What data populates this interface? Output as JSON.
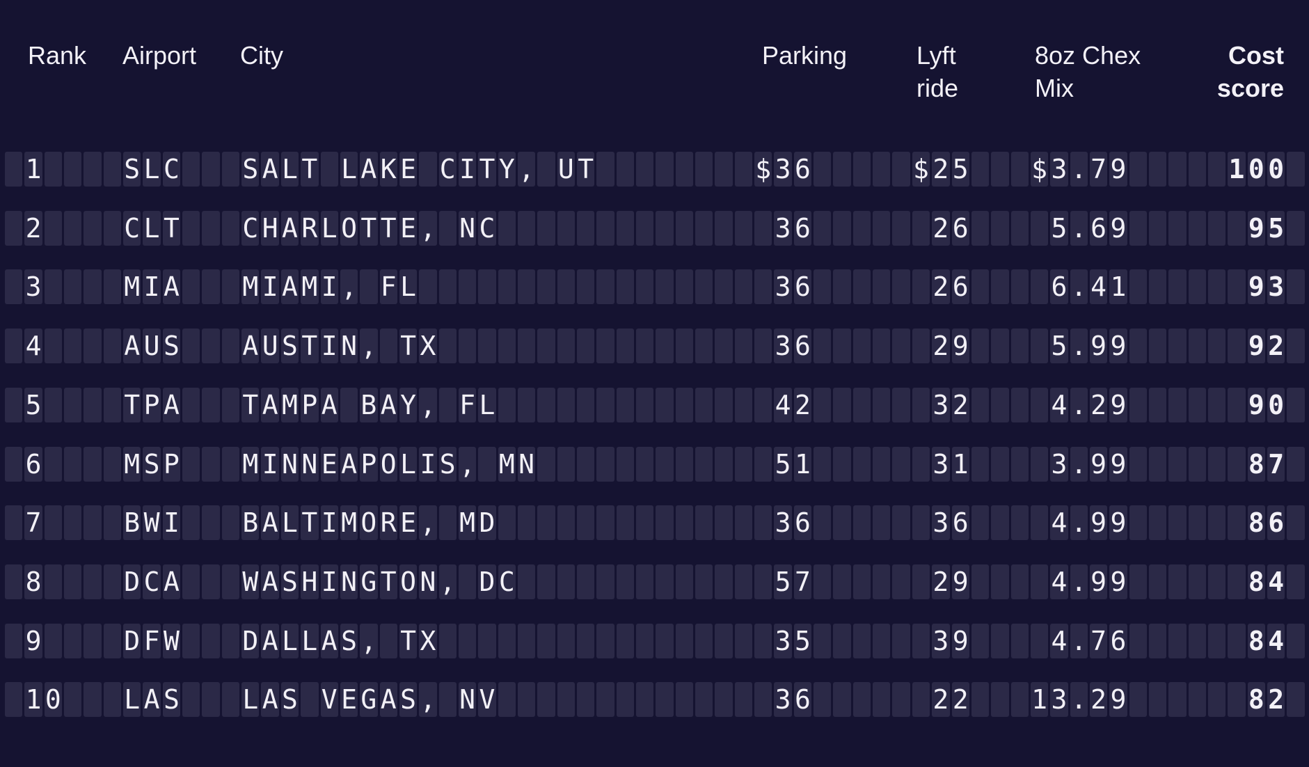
{
  "board": {
    "headers": {
      "rank": "Rank",
      "airport": "Airport",
      "city": "City",
      "parking": "Parking",
      "lyft": "Lyft ride",
      "chex": "8oz Chex Mix",
      "score": "Cost score"
    },
    "rows": [
      {
        "rank": "1",
        "airport": "SLC",
        "city": "SALT LAKE CITY, UT",
        "parking": "$36",
        "lyft": "$25",
        "chex": "$3.79",
        "score": "100"
      },
      {
        "rank": "2",
        "airport": "CLT",
        "city": "CHARLOTTE, NC",
        "parking": "36",
        "lyft": "26",
        "chex": "5.69",
        "score": "95"
      },
      {
        "rank": "3",
        "airport": "MIA",
        "city": "MIAMI, FL",
        "parking": "36",
        "lyft": "26",
        "chex": "6.41",
        "score": "93"
      },
      {
        "rank": "4",
        "airport": "AUS",
        "city": "AUSTIN, TX",
        "parking": "36",
        "lyft": "29",
        "chex": "5.99",
        "score": "92"
      },
      {
        "rank": "5",
        "airport": "TPA",
        "city": "TAMPA BAY, FL",
        "parking": "42",
        "lyft": "32",
        "chex": "4.29",
        "score": "90"
      },
      {
        "rank": "6",
        "airport": "MSP",
        "city": "MINNEAPOLIS, MN",
        "parking": "51",
        "lyft": "31",
        "chex": "3.99",
        "score": "87"
      },
      {
        "rank": "7",
        "airport": "BWI",
        "city": "BALTIMORE, MD",
        "parking": "36",
        "lyft": "36",
        "chex": "4.99",
        "score": "86"
      },
      {
        "rank": "8",
        "airport": "DCA",
        "city": "WASHINGTON, DC",
        "parking": "57",
        "lyft": "29",
        "chex": "4.99",
        "score": "84"
      },
      {
        "rank": "9",
        "airport": "DFW",
        "city": "DALLAS, TX",
        "parking": "35",
        "lyft": "39",
        "chex": "4.76",
        "score": "84"
      },
      {
        "rank": "10",
        "airport": "LAS",
        "city": "LAS VEGAS, NV",
        "parking": "36",
        "lyft": "22",
        "chex": "13.29",
        "score": "82"
      }
    ],
    "colors": {
      "background": "#151331",
      "cell": "#2b2947",
      "text": "#f3f1f7"
    }
  },
  "chart_data": {
    "type": "table",
    "title": "",
    "columns": [
      "Rank",
      "Airport",
      "City",
      "Parking",
      "Lyft ride",
      "8oz Chex Mix",
      "Cost score"
    ],
    "rows": [
      [
        1,
        "SLC",
        "SALT LAKE CITY, UT",
        "$36",
        "$25",
        "$3.79",
        100
      ],
      [
        2,
        "CLT",
        "CHARLOTTE, NC",
        "36",
        "26",
        "5.69",
        95
      ],
      [
        3,
        "MIA",
        "MIAMI, FL",
        "36",
        "26",
        "6.41",
        93
      ],
      [
        4,
        "AUS",
        "AUSTIN, TX",
        "36",
        "29",
        "5.99",
        92
      ],
      [
        5,
        "TPA",
        "TAMPA BAY, FL",
        "42",
        "32",
        "4.29",
        90
      ],
      [
        6,
        "MSP",
        "MINNEAPOLIS, MN",
        "51",
        "31",
        "3.99",
        87
      ],
      [
        7,
        "BWI",
        "BALTIMORE, MD",
        "36",
        "36",
        "4.99",
        86
      ],
      [
        8,
        "DCA",
        "WASHINGTON, DC",
        "57",
        "29",
        "4.99",
        84
      ],
      [
        9,
        "DFW",
        "DALLAS, TX",
        "35",
        "39",
        "4.76",
        84
      ],
      [
        10,
        "LAS",
        "LAS VEGAS, NV",
        "36",
        "22",
        "13.29",
        82
      ]
    ]
  }
}
